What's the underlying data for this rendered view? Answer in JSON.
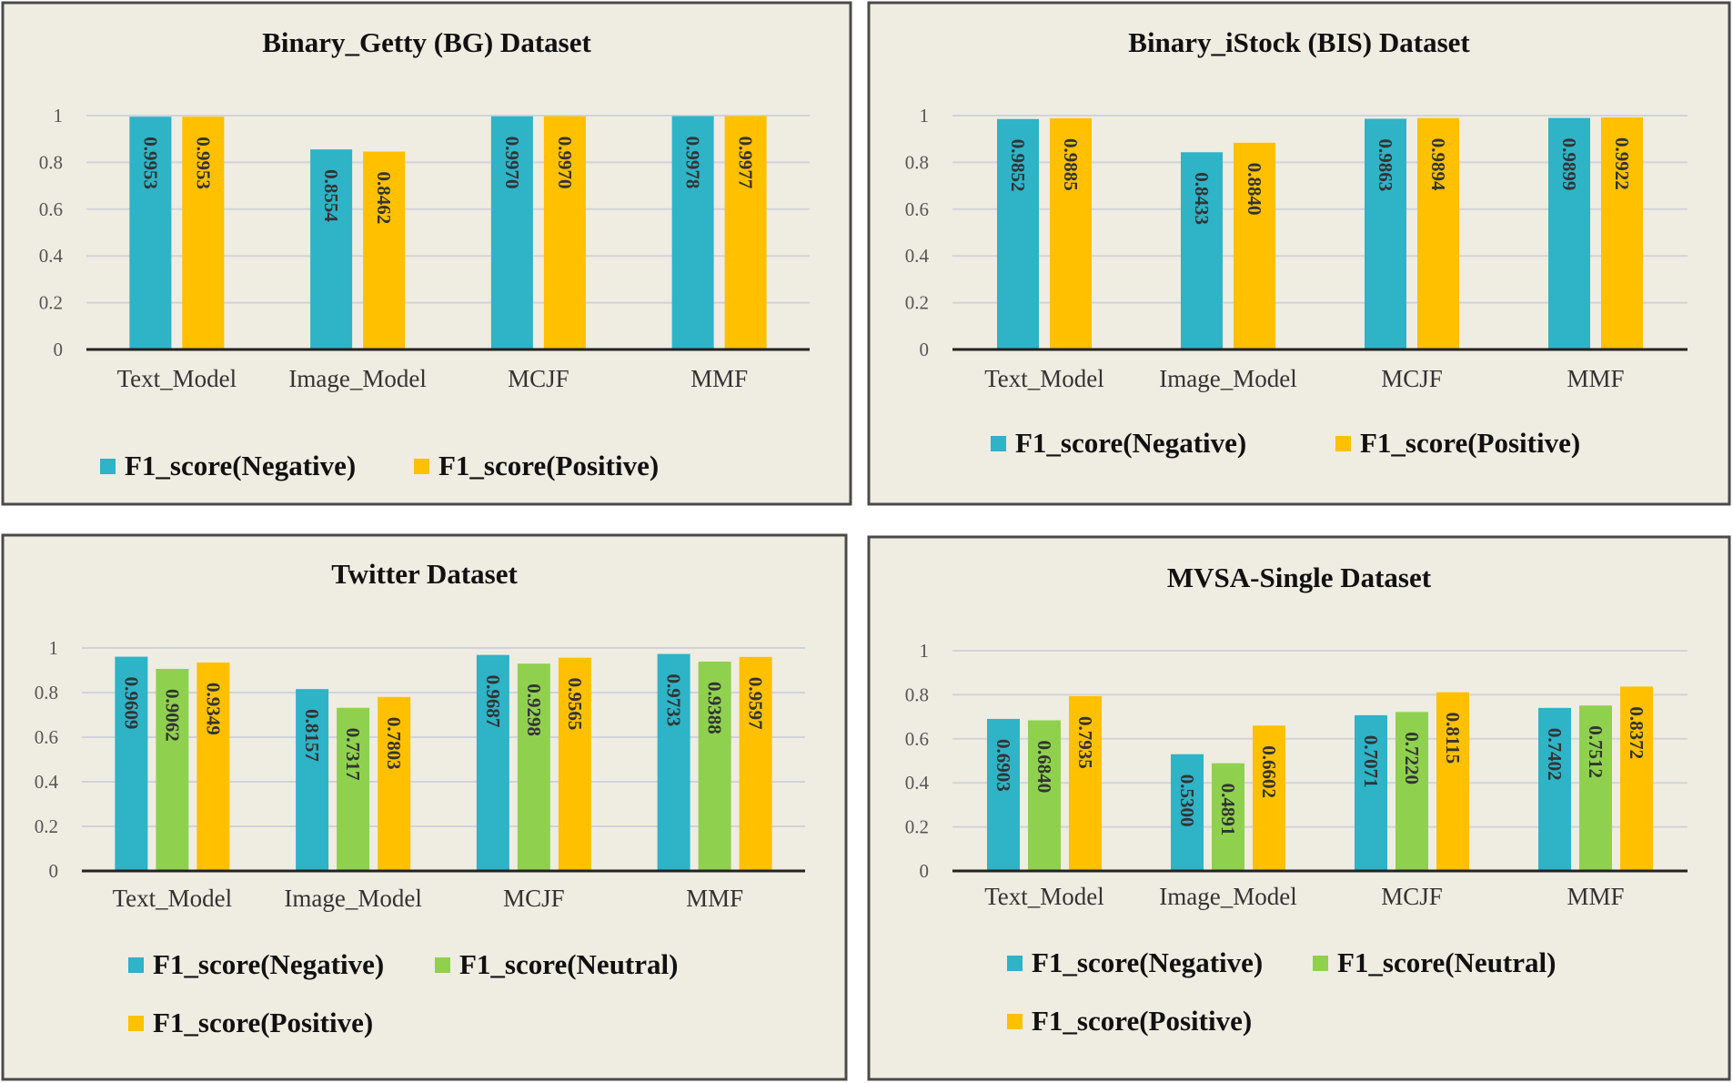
{
  "colors": {
    "panel_bg": "#efece2",
    "panel_border": "#4a4a4a",
    "grid": "#d0d3da",
    "axis": "#222222",
    "negative": "#2eb3c7",
    "neutral": "#8fd14f",
    "positive": "#ffc000"
  },
  "chart_data": [
    {
      "type": "bar",
      "title": "Binary_Getty (BG) Dataset",
      "categories": [
        "Text_Model",
        "Image_Model",
        "MCJF",
        "MMF"
      ],
      "series": [
        {
          "name": "F1_score(Negative)",
          "color_key": "negative",
          "values": [
            0.9953,
            0.8554,
            0.997,
            0.9978
          ],
          "labels": [
            "0.9953",
            "0.8554",
            "0.9970",
            "0.9978"
          ]
        },
        {
          "name": "F1_score(Positive)",
          "color_key": "positive",
          "values": [
            0.9953,
            0.8462,
            0.997,
            0.9977
          ],
          "labels": [
            "0.9953",
            "0.8462",
            "0.9970",
            "0.9977"
          ]
        }
      ],
      "y_ticks": [
        "0",
        "0.2",
        "0.4",
        "0.6",
        "0.8",
        "1"
      ],
      "ylim": [
        0,
        1
      ],
      "legend_position": "bottom"
    },
    {
      "type": "bar",
      "title": "Binary_iStock (BIS) Dataset",
      "categories": [
        "Text_Model",
        "Image_Model",
        "MCJF",
        "MMF"
      ],
      "series": [
        {
          "name": "F1_score(Negative)",
          "color_key": "negative",
          "values": [
            0.9852,
            0.8433,
            0.9863,
            0.9899
          ],
          "labels": [
            "0.9852",
            "0.8433",
            "0.9863",
            "0.9899"
          ]
        },
        {
          "name": "F1_score(Positive)",
          "color_key": "positive",
          "values": [
            0.9885,
            0.884,
            0.9894,
            0.9922
          ],
          "labels": [
            "0.9885",
            "0.8840",
            "0.9894",
            "0.9922"
          ]
        }
      ],
      "y_ticks": [
        "0",
        "0.2",
        "0.4",
        "0.6",
        "0.8",
        "1"
      ],
      "ylim": [
        0,
        1
      ],
      "legend_position": "bottom"
    },
    {
      "type": "bar",
      "title": "Twitter Dataset",
      "categories": [
        "Text_Model",
        "Image_Model",
        "MCJF",
        "MMF"
      ],
      "series": [
        {
          "name": "F1_score(Negative)",
          "color_key": "negative",
          "values": [
            0.9609,
            0.8157,
            0.9687,
            0.9733
          ],
          "labels": [
            "0.9609",
            "0.8157",
            "0.9687",
            "0.9733"
          ]
        },
        {
          "name": "F1_score(Neutral)",
          "color_key": "neutral",
          "values": [
            0.9062,
            0.7317,
            0.9298,
            0.9388
          ],
          "labels": [
            "0.9062",
            "0.7317",
            "0.9298",
            "0.9388"
          ]
        },
        {
          "name": "F1_score(Positive)",
          "color_key": "positive",
          "values": [
            0.9349,
            0.7803,
            0.9565,
            0.9597
          ],
          "labels": [
            "0.9349",
            "0.7803",
            "0.9565",
            "0.9597"
          ]
        }
      ],
      "y_ticks": [
        "0",
        "0.2",
        "0.4",
        "0.6",
        "0.8",
        "1"
      ],
      "ylim": [
        0,
        1
      ],
      "legend_position": "bottom"
    },
    {
      "type": "bar",
      "title": "MVSA-Single Dataset",
      "categories": [
        "Text_Model",
        "Image_Model",
        "MCJF",
        "MMF"
      ],
      "series": [
        {
          "name": "F1_score(Negative)",
          "color_key": "negative",
          "values": [
            0.6903,
            0.53,
            0.7071,
            0.7402
          ],
          "labels": [
            "0.6903",
            "0.5300",
            "0.7071",
            "0.7402"
          ]
        },
        {
          "name": "F1_score(Neutral)",
          "color_key": "neutral",
          "values": [
            0.684,
            0.4891,
            0.722,
            0.7512
          ],
          "labels": [
            "0.6840",
            "0.4891",
            "0.7220",
            "0.7512"
          ]
        },
        {
          "name": "F1_score(Positive)",
          "color_key": "positive",
          "values": [
            0.7935,
            0.6602,
            0.8115,
            0.8372
          ],
          "labels": [
            "0.7935",
            "0.6602",
            "0.8115",
            "0.8372"
          ]
        }
      ],
      "y_ticks": [
        "0",
        "0.2",
        "0.4",
        "0.6",
        "0.8",
        "1"
      ],
      "ylim": [
        0,
        1
      ],
      "legend_position": "bottom"
    }
  ]
}
